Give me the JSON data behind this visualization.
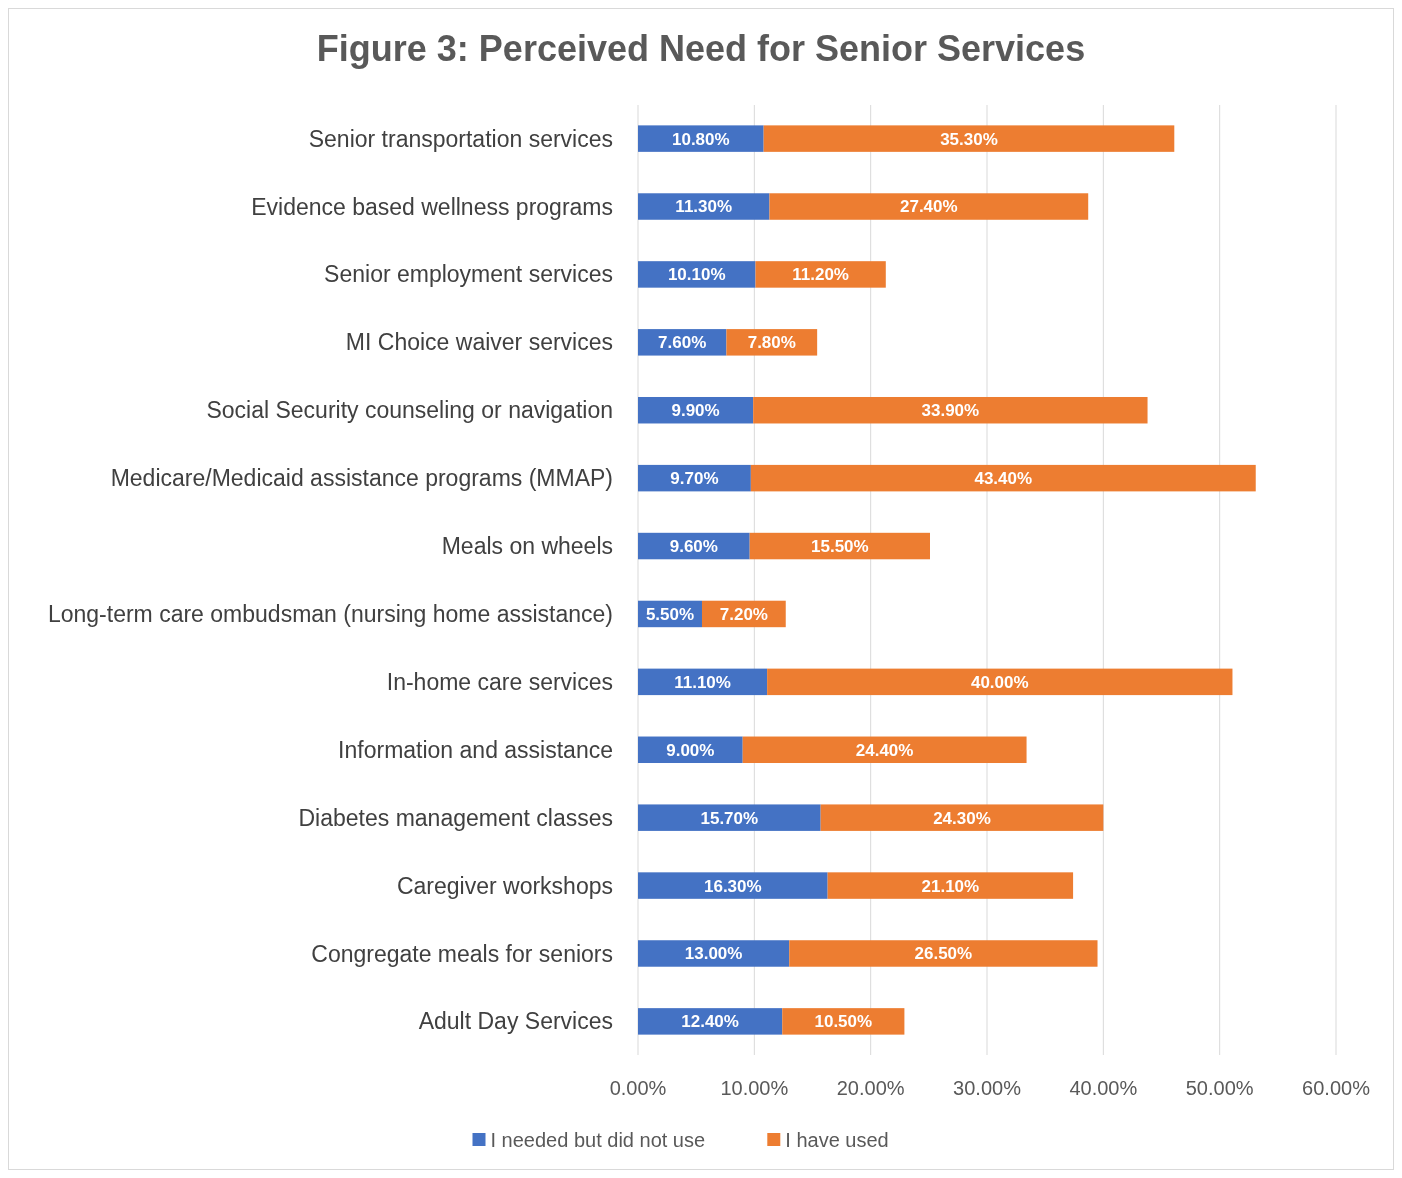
{
  "chart_data": {
    "type": "bar",
    "orientation": "horizontal",
    "stacked": true,
    "title": "Figure 3: Perceived Need for Senior Services",
    "categories": [
      "Senior transportation services",
      "Evidence based wellness programs",
      "Senior employment services",
      "MI Choice waiver services",
      "Social Security counseling or navigation",
      "Medicare/Medicaid assistance programs (MMAP)",
      "Meals on wheels",
      "Long-term care ombudsman (nursing home assistance)",
      "In-home care services",
      "Information and assistance",
      "Diabetes management classes",
      "Caregiver workshops",
      "Congregate meals for seniors",
      "Adult Day Services"
    ],
    "series": [
      {
        "name": "I needed but did not use",
        "color": "#4472c4",
        "values": [
          10.8,
          11.3,
          10.1,
          7.6,
          9.9,
          9.7,
          9.6,
          5.5,
          11.1,
          9.0,
          15.7,
          16.3,
          13.0,
          12.4
        ],
        "value_labels": [
          "10.80%",
          "11.30%",
          "10.10%",
          "7.60%",
          "9.90%",
          "9.70%",
          "9.60%",
          "5.50%",
          "11.10%",
          "9.00%",
          "15.70%",
          "16.30%",
          "13.00%",
          "12.40%"
        ]
      },
      {
        "name": "I have used",
        "color": "#ed7d31",
        "values": [
          35.3,
          27.4,
          11.2,
          7.8,
          33.9,
          43.4,
          15.5,
          7.2,
          40.0,
          24.4,
          24.3,
          21.1,
          26.5,
          10.5
        ],
        "value_labels": [
          "35.30%",
          "27.40%",
          "11.20%",
          "7.80%",
          "33.90%",
          "43.40%",
          "15.50%",
          "7.20%",
          "40.00%",
          "24.40%",
          "24.30%",
          "21.10%",
          "26.50%",
          "10.50%"
        ]
      }
    ],
    "xlim": [
      0,
      60
    ],
    "xticks": [
      {
        "value": 0,
        "label": "0.00%"
      },
      {
        "value": 10,
        "label": "10.00%"
      },
      {
        "value": 20,
        "label": "20.00%"
      },
      {
        "value": 30,
        "label": "30.00%"
      },
      {
        "value": 40,
        "label": "40.00%"
      },
      {
        "value": 50,
        "label": "50.00%"
      },
      {
        "value": 60,
        "label": "60.00%"
      }
    ],
    "grid": "x",
    "legend": "bottom"
  }
}
